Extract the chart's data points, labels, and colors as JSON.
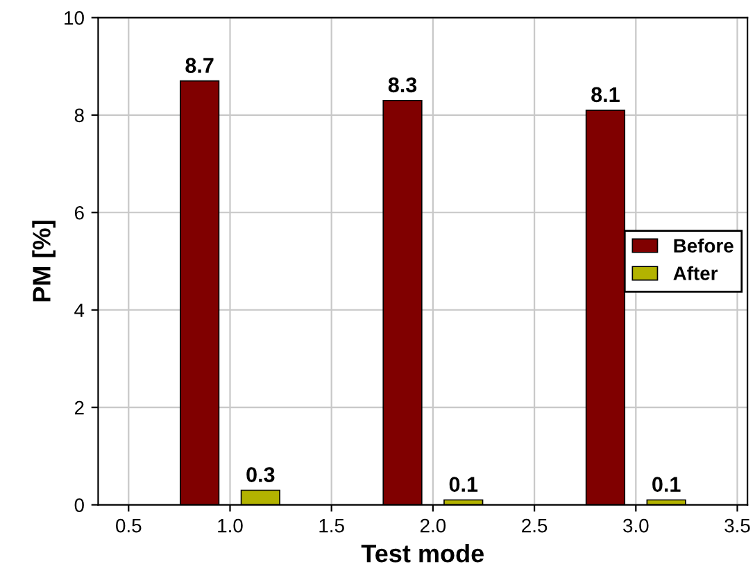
{
  "chart_data": {
    "type": "bar",
    "xlabel": "Test mode",
    "ylabel": "PM [%]",
    "series": [
      {
        "name": "Before",
        "color": "#800000",
        "x": [
          0.85,
          1.85,
          2.85
        ],
        "values": [
          8.7,
          8.3,
          8.1
        ]
      },
      {
        "name": "After",
        "color": "#b3b300",
        "x": [
          1.15,
          2.15,
          3.15
        ],
        "values": [
          0.3,
          0.1,
          0.1
        ]
      }
    ],
    "xlim": [
      0.35,
      3.55
    ],
    "xticks": [
      {
        "value": 0.5,
        "label": "0.5"
      },
      {
        "value": 1.0,
        "label": "1.0"
      },
      {
        "value": 1.5,
        "label": "1.5"
      },
      {
        "value": 2.0,
        "label": "2.0"
      },
      {
        "value": 2.5,
        "label": "2.5"
      },
      {
        "value": 3.0,
        "label": "3.0"
      },
      {
        "value": 3.5,
        "label": "3.5"
      }
    ],
    "ylim": [
      0,
      10
    ],
    "yticks": [
      0,
      2,
      4,
      6,
      8,
      10
    ],
    "grid": true,
    "legend": "right",
    "data_labels": true
  }
}
